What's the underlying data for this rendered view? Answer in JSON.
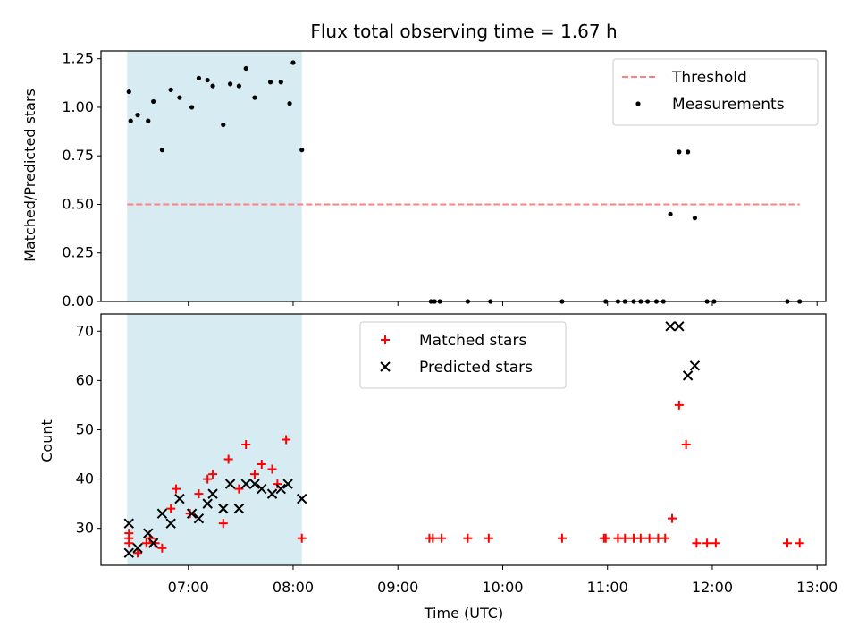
{
  "chart_data": [
    {
      "type": "scatter",
      "title": "Flux total observing time = 1.67 h",
      "xlabel": "",
      "ylabel": "Matched/Predicted stars",
      "xlim": [
        "06:10",
        "13:05"
      ],
      "ylim": [
        0,
        1.29
      ],
      "yticks": [
        0,
        0.25,
        0.5,
        0.75,
        1.0,
        1.25
      ],
      "ytick_labels": [
        "0.00",
        "0.25",
        "0.50",
        "0.75",
        "1.00",
        "1.25"
      ],
      "xticks": [
        "07:00",
        "08:00",
        "09:00",
        "10:00",
        "11:00",
        "12:00",
        "13:00"
      ],
      "shaded_span": [
        "06:25",
        "08:05"
      ],
      "shade_color": "#add8e6",
      "legend": "top-right",
      "threshold": {
        "name": "Threshold",
        "value": 0.5,
        "x_range": [
          "06:25",
          "12:50"
        ],
        "color": "#ff8080",
        "style": "dashed"
      },
      "series": [
        {
          "name": "Measurements",
          "color": "#000000",
          "marker": "dot",
          "x": [
            "06:26",
            "06:27",
            "06:31",
            "06:37",
            "06:40",
            "06:45",
            "06:50",
            "06:55",
            "07:02",
            "07:06",
            "07:11",
            "07:14",
            "07:20",
            "07:24",
            "07:29",
            "07:33",
            "07:38",
            "07:47",
            "07:53",
            "07:58",
            "08:00",
            "08:05",
            "09:19",
            "09:21",
            "09:24",
            "09:40",
            "09:53",
            "10:34",
            "10:59",
            "11:06",
            "11:10",
            "11:15",
            "11:19",
            "11:23",
            "11:28",
            "11:32",
            "11:36",
            "11:41",
            "11:46",
            "11:50",
            "11:57",
            "12:01",
            "12:43",
            "12:50"
          ],
          "y": [
            1.08,
            0.93,
            0.96,
            0.93,
            1.03,
            0.78,
            1.09,
            1.05,
            1.0,
            1.15,
            1.14,
            1.11,
            0.91,
            1.12,
            1.11,
            1.2,
            1.05,
            1.13,
            1.13,
            1.02,
            1.23,
            0.78,
            0,
            0,
            0,
            0,
            0,
            0,
            0,
            0,
            0,
            0,
            0,
            0,
            0,
            0,
            0.45,
            0.77,
            0.77,
            0.43,
            0,
            0,
            0,
            0
          ]
        }
      ]
    },
    {
      "type": "scatter",
      "title": "",
      "xlabel": "Time (UTC)",
      "ylabel": "Count",
      "xlim": [
        "06:10",
        "13:05"
      ],
      "ylim": [
        22.5,
        73.5
      ],
      "yticks": [
        30,
        40,
        50,
        60,
        70
      ],
      "ytick_labels": [
        "30",
        "40",
        "50",
        "60",
        "70"
      ],
      "xticks": [
        "07:00",
        "08:00",
        "09:00",
        "10:00",
        "11:00",
        "12:00",
        "13:00"
      ],
      "xtick_labels": [
        "07:00",
        "08:00",
        "09:00",
        "10:00",
        "11:00",
        "12:00",
        "13:00"
      ],
      "shaded_span": [
        "06:25",
        "08:05"
      ],
      "shade_color": "#add8e6",
      "legend": "top-center",
      "series": [
        {
          "name": "Matched stars",
          "color": "#ff0000",
          "marker": "plus",
          "x": [
            "06:26",
            "06:26",
            "06:26",
            "06:31",
            "06:36",
            "06:38",
            "06:41",
            "06:45",
            "06:50",
            "06:53",
            "07:01",
            "07:06",
            "07:11",
            "07:14",
            "07:20",
            "07:23",
            "07:29",
            "07:33",
            "07:38",
            "07:42",
            "07:48",
            "07:51",
            "07:56",
            "08:05",
            "09:18",
            "09:20",
            "09:25",
            "09:40",
            "09:52",
            "10:34",
            "10:58",
            "10:59",
            "11:06",
            "11:10",
            "11:15",
            "11:19",
            "11:24",
            "11:29",
            "11:33",
            "11:37",
            "11:41",
            "11:45",
            "11:51",
            "11:57",
            "12:02",
            "12:43",
            "12:50"
          ],
          "y": [
            27,
            28,
            29,
            25,
            27,
            28,
            27,
            26,
            34,
            38,
            33,
            37,
            40,
            41,
            31,
            44,
            38,
            47,
            41,
            43,
            42,
            39,
            48,
            28,
            28,
            28,
            28,
            28,
            28,
            28,
            28,
            28,
            28,
            28,
            28,
            28,
            28,
            28,
            28,
            32,
            55,
            47,
            27,
            27,
            27,
            27,
            27
          ]
        },
        {
          "name": "Predicted stars",
          "color": "#000000",
          "marker": "x",
          "x": [
            "06:26",
            "06:26",
            "06:31",
            "06:37",
            "06:40",
            "06:45",
            "06:50",
            "06:55",
            "07:02",
            "07:06",
            "07:11",
            "07:14",
            "07:20",
            "07:24",
            "07:29",
            "07:33",
            "07:38",
            "07:42",
            "07:48",
            "07:53",
            "07:57",
            "08:05",
            "11:36",
            "11:41",
            "11:46",
            "11:50"
          ],
          "y": [
            31,
            25,
            26,
            29,
            27,
            33,
            31,
            36,
            33,
            32,
            35,
            37,
            34,
            39,
            34,
            39,
            39,
            38,
            37,
            38,
            39,
            36,
            71,
            71,
            61,
            63
          ]
        }
      ]
    }
  ]
}
